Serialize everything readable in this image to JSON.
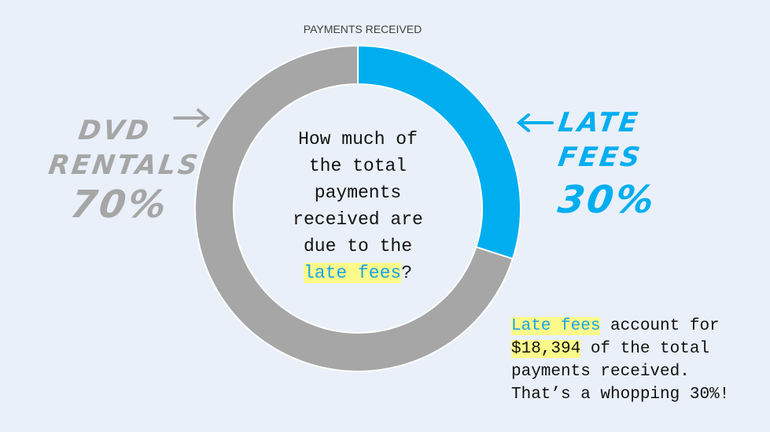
{
  "chart_data": {
    "type": "pie",
    "title": "PAYMENTS RECEIVED",
    "categories": [
      "LATE FEES",
      "DVD RENTALS"
    ],
    "values": [
      30,
      70
    ],
    "colors": [
      "#00aeef",
      "#a6a6a6"
    ],
    "donut": true
  },
  "center_question": {
    "lines": [
      "How much of",
      "the total",
      "payments",
      "received are",
      "due to the"
    ],
    "highlight": "late fees",
    "end": "?"
  },
  "labels": {
    "dvd": {
      "line1": "DVD",
      "line2": "RENTALS",
      "pct": "70%"
    },
    "late": {
      "line1": "LATE",
      "line2": "FEES",
      "pct": "30%"
    }
  },
  "note": {
    "highlight": "Late fees",
    "line1_rest": " account for",
    "amount": "$18,394",
    "line2_rest": " of the total",
    "line3": "payments received.",
    "line4": "That’s a whopping 30%!"
  },
  "colors": {
    "background": "#e9f0f9",
    "late_fees": "#00aeef",
    "dvd_rentals": "#a6a6a6",
    "highlight": "#fbf98a"
  }
}
